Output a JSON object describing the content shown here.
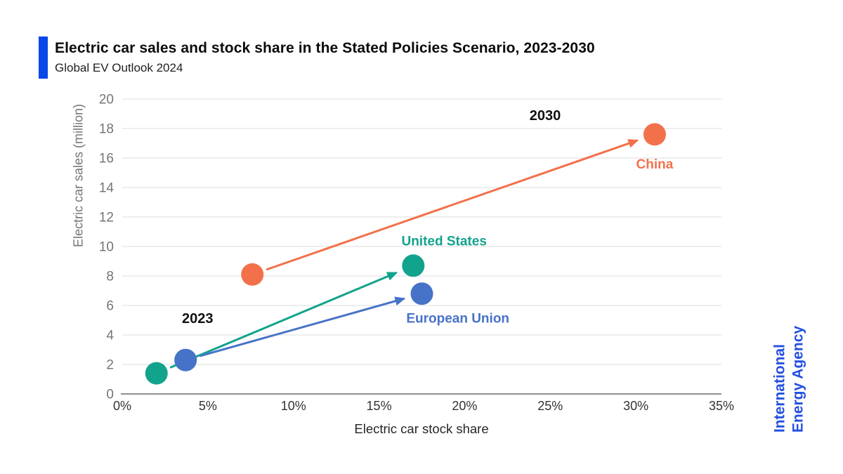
{
  "header": {
    "title": "Electric car sales and stock share in the Stated Policies Scenario, 2023-2030",
    "subtitle": "Global EV Outlook 2024",
    "accent_color": "#0847e8"
  },
  "logo": {
    "line1": "International",
    "line2": "Energy Agency",
    "color": "#2450e0"
  },
  "chart_data": {
    "type": "scatter",
    "title": "Electric car sales and stock share in the Stated Policies Scenario, 2023-2030",
    "xlabel": "Electric car stock share",
    "ylabel": "Electric car sales (million)",
    "xlim": [
      0,
      35
    ],
    "ylim": [
      0,
      20
    ],
    "grid": "horizontal",
    "x_ticks": [
      {
        "value": 0,
        "label": "0%"
      },
      {
        "value": 5,
        "label": "5%"
      },
      {
        "value": 10,
        "label": "10%"
      },
      {
        "value": 15,
        "label": "15%"
      },
      {
        "value": 20,
        "label": "20%"
      },
      {
        "value": 25,
        "label": "25%"
      },
      {
        "value": 30,
        "label": "30%"
      },
      {
        "value": 35,
        "label": "35%"
      }
    ],
    "y_ticks": [
      0,
      2,
      4,
      6,
      8,
      10,
      12,
      14,
      16,
      18,
      20
    ],
    "series": [
      {
        "name": "China",
        "color": "#f2714b",
        "points": [
          {
            "year": 2023,
            "stock_share_pct": 7.6,
            "sales_million": 8.1
          },
          {
            "year": 2030,
            "stock_share_pct": 31.1,
            "sales_million": 17.6
          }
        ]
      },
      {
        "name": "United States",
        "color": "#12a38c",
        "points": [
          {
            "year": 2023,
            "stock_share_pct": 2.0,
            "sales_million": 1.4
          },
          {
            "year": 2030,
            "stock_share_pct": 17.0,
            "sales_million": 8.7
          }
        ]
      },
      {
        "name": "European Union",
        "color": "#4673c8",
        "points": [
          {
            "year": 2023,
            "stock_share_pct": 3.7,
            "sales_million": 2.3
          },
          {
            "year": 2030,
            "stock_share_pct": 17.5,
            "sales_million": 6.8
          }
        ]
      }
    ],
    "annotations": [
      {
        "text": "2023",
        "x": 4.4,
        "y": 5.15,
        "color": "#111111",
        "size": 20
      },
      {
        "text": "2030",
        "x": 24.7,
        "y": 18.9,
        "color": "#111111",
        "size": 20
      },
      {
        "text": "United States",
        "x": 18.8,
        "y": 10.4,
        "color": "#12a38c",
        "size": 19
      },
      {
        "text": "European Union",
        "x": 19.6,
        "y": 5.15,
        "color": "#4673c8",
        "size": 19
      },
      {
        "text": "China",
        "x": 31.1,
        "y": 15.6,
        "color": "#f2714b",
        "size": 19
      }
    ],
    "style": {
      "gridline_color": "#e4e4e4",
      "axis_line_color": "#8f8f8f",
      "y_tick_color": "#757575",
      "x_tick_color": "#333333",
      "dot_radius": 16,
      "arrow_width": 3
    }
  }
}
